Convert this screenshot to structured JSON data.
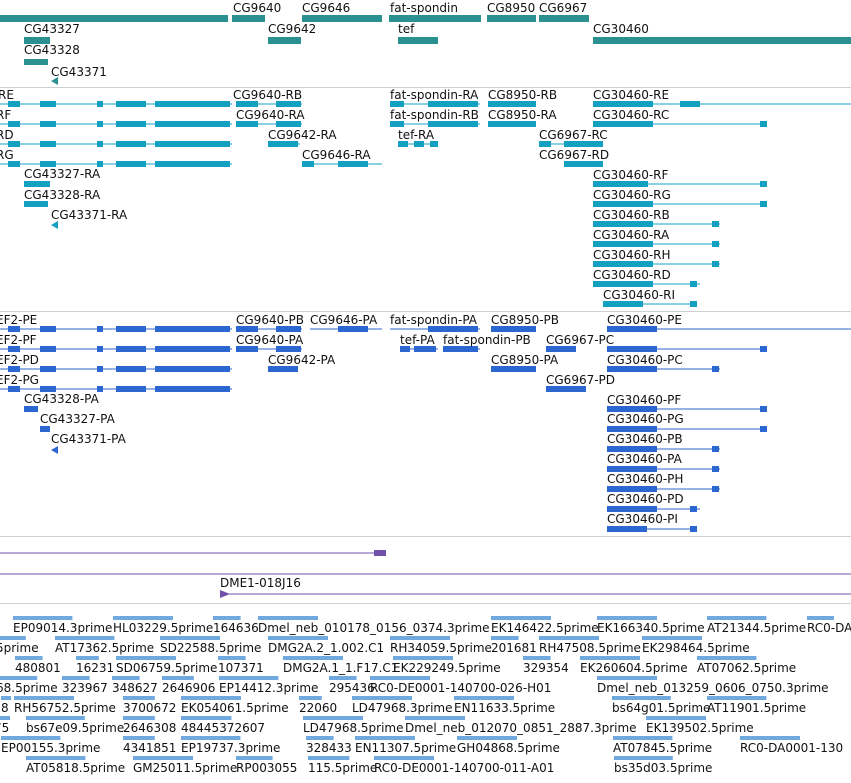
{
  "tracks": {
    "genes": {
      "color": "#2a9090",
      "labels": [
        "CG9640",
        "CG9646",
        "fat-spondin",
        "CG8950",
        "CG6967",
        "CG43327",
        "CG9642",
        "tef",
        "CG30460",
        "CG43328",
        "CG43371"
      ]
    },
    "transcripts": {
      "color": "#14a0c0",
      "labels": [
        "CG9640-RB",
        "fat-spondin-RA",
        "CG8950-RB",
        "CG30460-RE",
        "CG9640-RA",
        "fat-spondin-RB",
        "CG8950-RA",
        "CG30460-RC",
        "CG9642-RA",
        "tef-RA",
        "CG6967-RC",
        "CG9646-RA",
        "CG6967-RD",
        "CG43327-RA",
        "CG30460-RF",
        "CG43328-RA",
        "CG30460-RG",
        "CG43371-RA",
        "CG30460-RB",
        "CG30460-RA",
        "CG30460-RH",
        "CG30460-RD",
        "CG30460-RI"
      ],
      "left_edge_labels": [
        "RE",
        "RF",
        "RD",
        "RG"
      ]
    },
    "proteins": {
      "color": "#2c66d0",
      "labels": [
        "CG9640-PB",
        "CG9646-PA",
        "fat-spondin-PA",
        "CG8950-PB",
        "CG30460-PE",
        "CG9640-PA",
        "tef-PA",
        "fat-spondin-PB",
        "CG6967-PC",
        "CG9642-PA",
        "CG8950-PA",
        "CG30460-PC",
        "CG43328-PA",
        "CG6967-PD",
        "CG30460-PF",
        "CG43327-PA",
        "CG30460-PG",
        "CG43371-PA",
        "CG30460-PB",
        "CG30460-PA",
        "CG30460-PH",
        "CG30460-PD",
        "CG30460-PI"
      ],
      "left_edge_labels": [
        "EF2-PE",
        "EF2-PF",
        "EF2-PD",
        "EF2-PG"
      ]
    },
    "clones": {
      "color": "#7050a8",
      "labels": [
        "DME1-018J16"
      ]
    },
    "ests": {
      "color": "#70a8e0",
      "rows": [
        [
          "EP09014.3prime",
          "HL03229.5prime",
          "164636",
          "Dmel_neb_010178_0156_0374.3prime",
          "EK146422.5prime",
          "EK166340.5prime",
          "AT21344.5prime",
          "RC0-DA"
        ],
        [
          "5prime",
          "AT17362.5prime",
          "SD22588.5prime",
          "DMG2A.2_1.002.C1",
          "RH34059.5prime",
          "201681",
          "RH47508.5prime",
          "EK298464.5prime"
        ],
        [
          "480801",
          "16231",
          "SD06759.5prime",
          "107371",
          "DMG2A.1_1.F17.C1",
          "EK229249.5prime",
          "329354",
          "EK260604.5prime",
          "AT07062.5prime"
        ],
        [
          "68.5prime",
          "323967",
          "348627",
          "2646906",
          "EP14412.3prime",
          "295436",
          "RC0-DE0001-140700-026-H01",
          "Dmel_neb_013259_0606_0750.3prime"
        ],
        [
          "8",
          "RH56752.5prime",
          "3700672",
          "EK054061.5prime",
          "22060",
          "LD47968.3prime",
          "EN11633.5prime",
          "bs64g01.5prime",
          "AT11901.5prime"
        ],
        [
          "75",
          "bs67e09.5prime",
          "2646308",
          "48445372607",
          "LD47968.5prime",
          "Dmel_neb_012070_0851_2887.3prime",
          "EK139502.5prime"
        ],
        [
          "EP00155.3prime",
          "4341851",
          "EP19737.3prime",
          "328433",
          "EN11307.5prime",
          "GH04868.5prime",
          "AT07845.5prime",
          "RC0-DA0001-130"
        ],
        [
          "AT05818.5prime",
          "GM25011.5prime",
          "RP003055",
          "115.5prime",
          "RC0-DE0001-140700-011-A01",
          "bs35d03.5prime"
        ]
      ]
    }
  }
}
